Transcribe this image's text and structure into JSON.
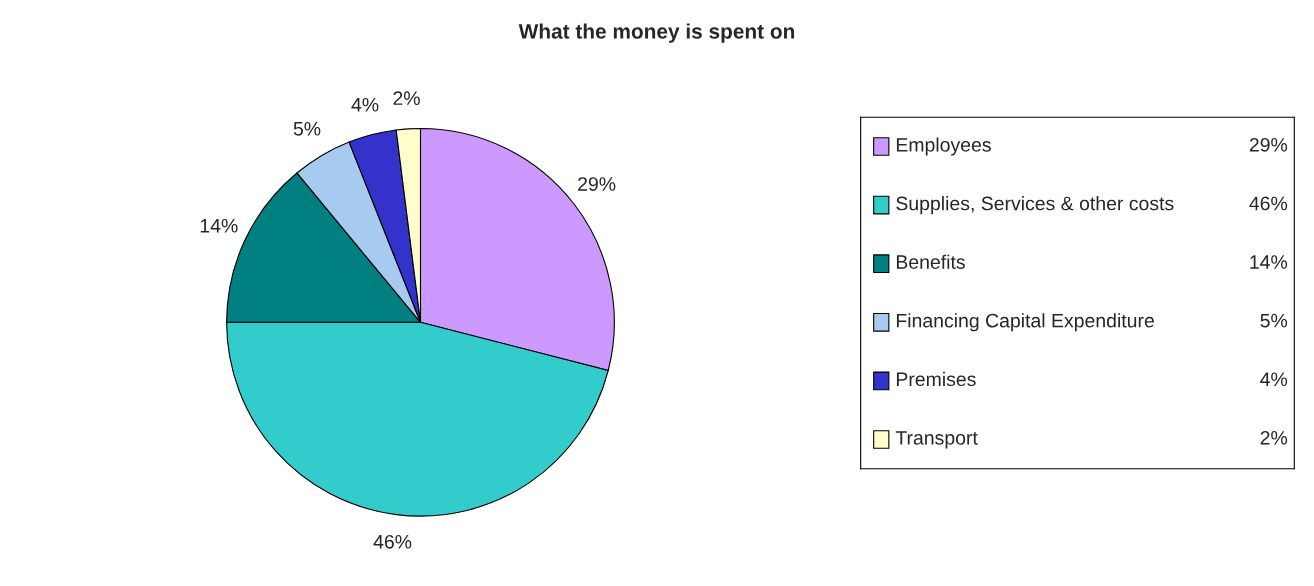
{
  "chart_data": {
    "type": "pie",
    "title": "What the money is spent on",
    "categories": [
      "Employees",
      "Supplies, Services & other costs",
      "Benefits",
      "Financing Capital Expenditure",
      "Premises",
      "Transport"
    ],
    "values": [
      29,
      46,
      14,
      5,
      4,
      2
    ],
    "colors": [
      "#cc99ff",
      "#33cccc",
      "#008080",
      "#a6caf0",
      "#3333cc",
      "#ffffcc"
    ],
    "value_labels": [
      "29%",
      "46%",
      "14%",
      "5%",
      "4%",
      "2%"
    ],
    "legend": "right"
  }
}
